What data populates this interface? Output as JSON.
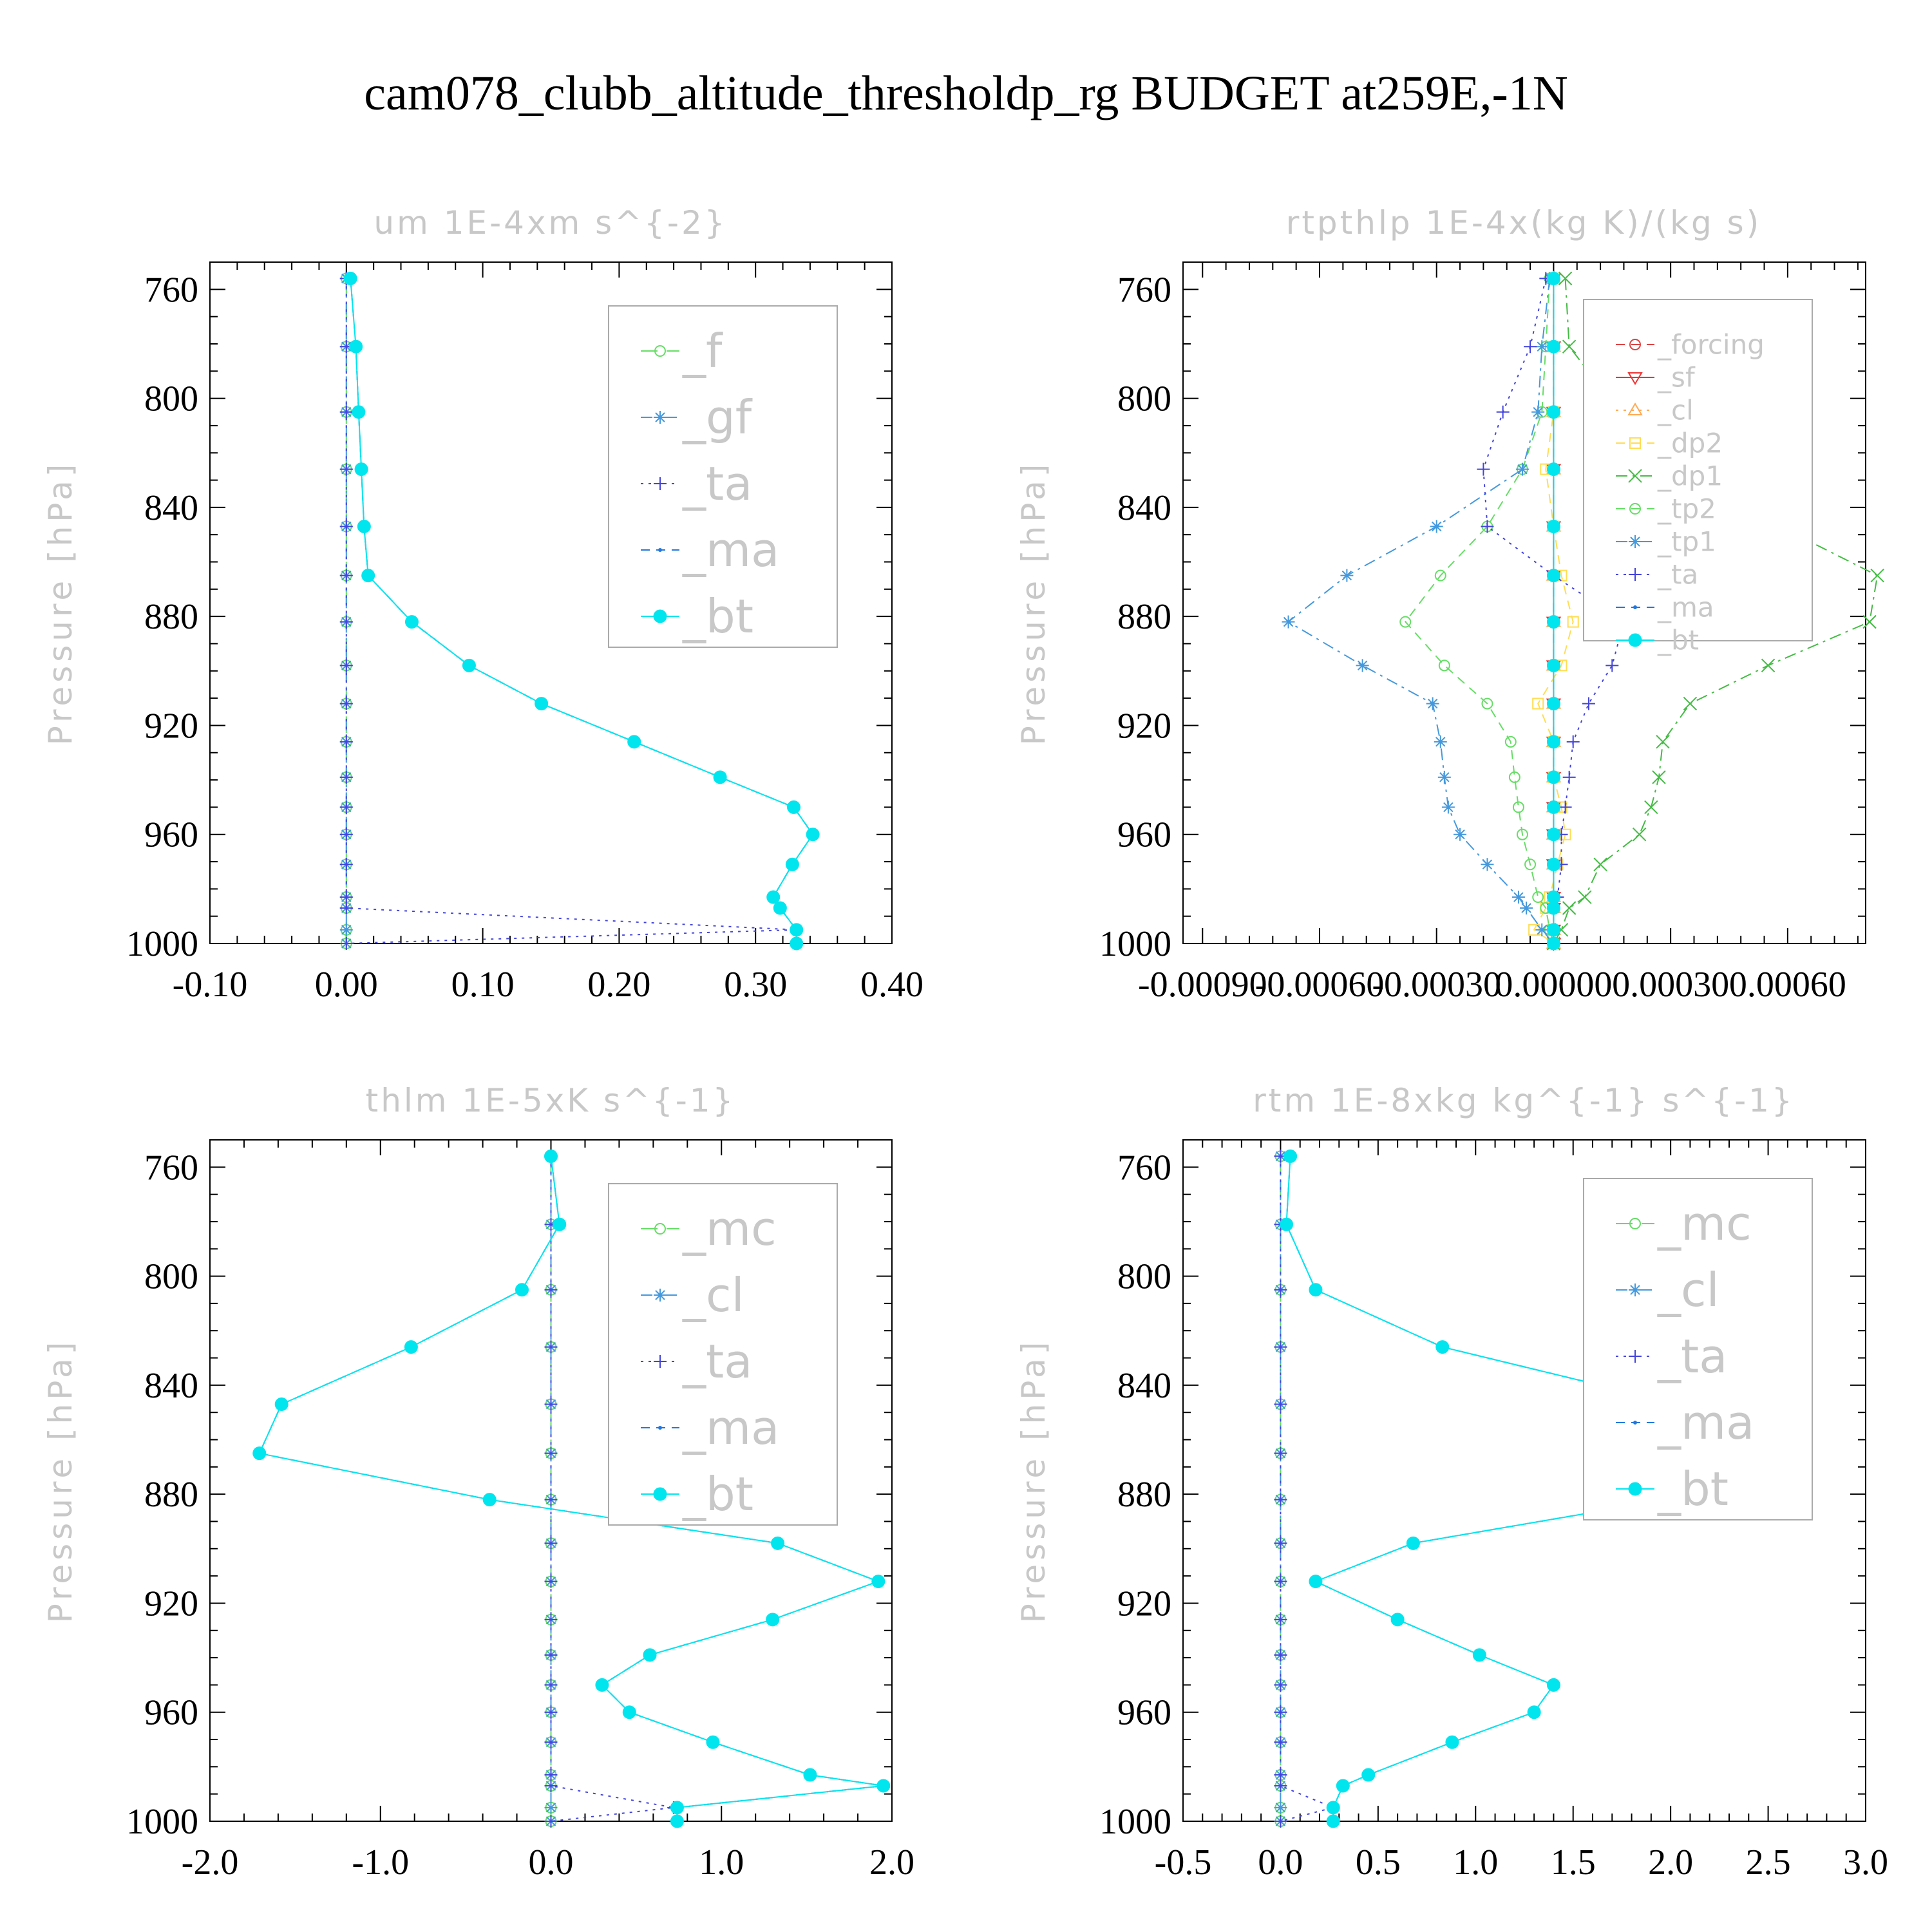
{
  "title": "cam078_clubb_altitude_thresholdp_rg  BUDGET at259E,-1N",
  "chart_data": [
    {
      "type": "line",
      "title": "um   1E-4xm s^{-2}",
      "ylabel": "Pressure [hPa]",
      "xlim": [
        -0.1,
        0.4
      ],
      "xticks": [
        "-0.10",
        "0.00",
        "0.10",
        "0.20",
        "0.30",
        "0.40"
      ],
      "ylim": [
        750,
        1000
      ],
      "yticks": [
        "760",
        "800",
        "840",
        "880",
        "920",
        "960",
        "1000"
      ],
      "y": [
        756,
        781,
        805,
        826,
        847,
        865,
        882,
        898,
        912,
        926,
        939,
        950,
        960,
        971,
        983,
        987,
        995,
        1000
      ],
      "series": [
        {
          "name": "_f",
          "color": "#66dd66",
          "marker": "circle-open",
          "dash": "long-dash",
          "values": [
            0,
            0,
            0,
            0,
            0,
            0,
            0,
            0,
            0,
            0,
            0,
            0,
            0,
            0,
            0,
            0,
            0,
            0
          ]
        },
        {
          "name": "_gf",
          "color": "#4499dd",
          "marker": "asterisk",
          "dash": "dash-dot",
          "values": [
            0,
            0,
            0,
            0,
            0,
            0,
            0,
            0,
            0,
            0,
            0,
            0,
            0,
            0,
            0,
            0,
            0,
            0
          ]
        },
        {
          "name": "_ta",
          "color": "#4444dd",
          "marker": "plus",
          "dash": "dot",
          "values": [
            0,
            0,
            0,
            0,
            0,
            0,
            0,
            0,
            0,
            0,
            0,
            0,
            0,
            0,
            0,
            0,
            0.33,
            0
          ]
        },
        {
          "name": "_ma",
          "color": "#2277dd",
          "marker": "dot",
          "dash": "dash",
          "values": [
            0.003,
            0.007,
            0.009,
            0.011,
            0.013,
            0.016,
            0.048,
            0.09,
            0.143,
            0.211,
            0.274,
            0.328,
            0.342,
            0.327,
            0.313,
            0.318,
            0.33,
            0.33
          ]
        },
        {
          "name": "_bt",
          "color": "#00e5ee",
          "marker": "circle-filled",
          "dash": "none",
          "values": [
            0.003,
            0.007,
            0.009,
            0.011,
            0.013,
            0.016,
            0.048,
            0.09,
            0.143,
            0.211,
            0.274,
            0.328,
            0.342,
            0.327,
            0.313,
            0.318,
            0.33,
            0.33
          ]
        }
      ],
      "legend": "top-right"
    },
    {
      "type": "line",
      "title": "rtpthlp   1E-4x(kg K)/(kg s)",
      "ylabel": "Pressure [hPa]",
      "xlim": [
        -0.00095,
        0.0008
      ],
      "xticks": [
        "-0.00090",
        "-0.00060",
        "-0.00030",
        "0.00000",
        "0.00030",
        "0.00060"
      ],
      "ylim": [
        750,
        1000
      ],
      "yticks": [
        "760",
        "800",
        "840",
        "880",
        "920",
        "960",
        "1000"
      ],
      "y": [
        756,
        781,
        805,
        826,
        847,
        865,
        882,
        898,
        912,
        926,
        939,
        950,
        960,
        971,
        983,
        987,
        995,
        1000
      ],
      "series": [
        {
          "name": "_forcing",
          "color": "#dd4444",
          "marker": "circle-open",
          "dash": "dash",
          "values": [
            0,
            0,
            0,
            0,
            0,
            0,
            0,
            0,
            0,
            0,
            0,
            0,
            0,
            0,
            0,
            0,
            0,
            0
          ]
        },
        {
          "name": "_sf",
          "color": "#ee3333",
          "marker": "triangle-down",
          "dash": "none",
          "values": [
            0,
            0,
            0,
            0,
            0,
            0,
            0,
            0,
            0,
            0,
            0,
            0,
            0,
            0,
            0,
            0,
            0,
            0
          ]
        },
        {
          "name": "_cl",
          "color": "#ffaa55",
          "marker": "triangle-up",
          "dash": "dot",
          "values": [
            0,
            0,
            0,
            0,
            0,
            0,
            0,
            0,
            0,
            0,
            0,
            0,
            0,
            0,
            0,
            0,
            0,
            0
          ]
        },
        {
          "name": "_dp2",
          "color": "#ffdd55",
          "marker": "square-open",
          "dash": "dash",
          "values": [
            0,
            0,
            0,
            -2e-05,
            0,
            2e-05,
            5e-05,
            2e-05,
            -4e-05,
            0,
            0,
            2e-05,
            3e-05,
            1e-05,
            -1e-05,
            -2e-05,
            -5e-05,
            0
          ]
        },
        {
          "name": "_dp1",
          "color": "#44bb44",
          "marker": "x",
          "dash": "dash-dot",
          "values": [
            3e-05,
            4e-05,
            0.00017,
            0.0003,
            0.00058,
            0.00083,
            0.00081,
            0.00055,
            0.00035,
            0.00028,
            0.00027,
            0.00025,
            0.00022,
            0.00012,
            8e-05,
            4e-05,
            2e-05,
            0
          ]
        },
        {
          "name": "_tp2",
          "color": "#66dd66",
          "marker": "circle-open",
          "dash": "dash",
          "values": [
            -1e-05,
            -2e-05,
            -3e-05,
            -8e-05,
            -0.00017,
            -0.00029,
            -0.00038,
            -0.00028,
            -0.00017,
            -0.00011,
            -0.0001,
            -9e-05,
            -8e-05,
            -6e-05,
            -4e-05,
            -2e-05,
            -1e-05,
            0
          ]
        },
        {
          "name": "_tp1",
          "color": "#4499dd",
          "marker": "asterisk",
          "dash": "dash-dot",
          "values": [
            -1e-05,
            -3e-05,
            -4e-05,
            -8e-05,
            -0.0003,
            -0.00053,
            -0.00068,
            -0.00049,
            -0.00031,
            -0.00029,
            -0.00028,
            -0.00027,
            -0.00024,
            -0.00017,
            -9e-05,
            -7e-05,
            -3e-05,
            0
          ]
        },
        {
          "name": "_ta",
          "color": "#4444dd",
          "marker": "plus",
          "dash": "dot",
          "values": [
            -2e-05,
            -6e-05,
            -0.00013,
            -0.00018,
            -0.00017,
            0,
            0.00018,
            0.00015,
            9e-05,
            5e-05,
            4e-05,
            3e-05,
            2e-05,
            2e-05,
            1e-05,
            0,
            0,
            0
          ]
        },
        {
          "name": "_ma",
          "color": "#2277dd",
          "marker": "dot",
          "dash": "dash",
          "values": [
            0,
            0,
            0,
            0,
            0,
            0,
            0,
            0,
            0,
            0,
            0,
            0,
            0,
            0,
            0,
            0,
            0,
            0
          ]
        },
        {
          "name": "_bt",
          "color": "#00e5ee",
          "marker": "circle-filled",
          "dash": "none",
          "values": [
            0,
            0,
            0,
            0,
            0,
            0,
            0,
            0,
            0,
            0,
            0,
            0,
            0,
            0,
            0,
            0,
            0,
            0
          ]
        }
      ],
      "legend": "top-right"
    },
    {
      "type": "line",
      "title": "thlm   1E-5xK s^{-1}",
      "ylabel": "Pressure [hPa]",
      "xlim": [
        -2.0,
        2.0
      ],
      "xticks": [
        "-2.0",
        "-1.0",
        "0.0",
        "1.0",
        "2.0"
      ],
      "ylim": [
        750,
        1000
      ],
      "yticks": [
        "760",
        "800",
        "840",
        "880",
        "920",
        "960",
        "1000"
      ],
      "y": [
        756,
        781,
        805,
        826,
        847,
        865,
        882,
        898,
        912,
        926,
        939,
        950,
        960,
        971,
        983,
        987,
        995,
        1000
      ],
      "series": [
        {
          "name": "_mc",
          "color": "#66dd66",
          "marker": "circle-open",
          "dash": "long-dash",
          "values": [
            0,
            0,
            0,
            0,
            0,
            0,
            0,
            0,
            0,
            0,
            0,
            0,
            0,
            0,
            0,
            0,
            0,
            0
          ]
        },
        {
          "name": "_cl",
          "color": "#4499dd",
          "marker": "asterisk",
          "dash": "dash-dot",
          "values": [
            0,
            0,
            0,
            0,
            0,
            0,
            0,
            0,
            0,
            0,
            0,
            0,
            0,
            0,
            0,
            0,
            0,
            0
          ]
        },
        {
          "name": "_ta",
          "color": "#4444dd",
          "marker": "plus",
          "dash": "dot",
          "values": [
            0,
            0,
            0,
            0,
            0,
            0,
            0,
            0,
            0,
            0,
            0,
            0,
            0,
            0,
            0,
            0,
            0.72,
            0
          ]
        },
        {
          "name": "_ma",
          "color": "#2277dd",
          "marker": "dot",
          "dash": "dash",
          "values": [
            0,
            0.05,
            -0.17,
            -0.82,
            -1.58,
            -1.71,
            -0.36,
            1.33,
            1.92,
            1.3,
            0.58,
            0.3,
            0.46,
            0.95,
            1.52,
            1.95,
            0.74,
            0.74
          ]
        },
        {
          "name": "_bt",
          "color": "#00e5ee",
          "marker": "circle-filled",
          "dash": "none",
          "values": [
            0,
            0.05,
            -0.17,
            -0.82,
            -1.58,
            -1.71,
            -0.36,
            1.33,
            1.92,
            1.3,
            0.58,
            0.3,
            0.46,
            0.95,
            1.52,
            1.95,
            0.74,
            0.74
          ]
        }
      ],
      "legend": "top-right"
    },
    {
      "type": "line",
      "title": "rtm   1E-8xkg kg^{-1} s^{-1}",
      "ylabel": "Pressure [hPa]",
      "xlim": [
        -0.5,
        3.0
      ],
      "xticks": [
        "-0.5",
        "0.0",
        "0.5",
        "1.0",
        "1.5",
        "2.0",
        "2.5",
        "3.0"
      ],
      "ylim": [
        750,
        1000
      ],
      "yticks": [
        "760",
        "800",
        "840",
        "880",
        "920",
        "960",
        "1000"
      ],
      "y": [
        756,
        781,
        805,
        826,
        847,
        865,
        882,
        898,
        912,
        926,
        939,
        950,
        960,
        971,
        983,
        987,
        995,
        1000
      ],
      "series": [
        {
          "name": "_mc",
          "color": "#66dd66",
          "marker": "circle-open",
          "dash": "long-dash",
          "values": [
            0,
            0,
            0,
            0,
            0,
            0,
            0,
            0,
            0,
            0,
            0,
            0,
            0,
            0,
            0,
            0,
            0,
            0
          ]
        },
        {
          "name": "_cl",
          "color": "#4499dd",
          "marker": "asterisk",
          "dash": "dash-dot",
          "values": [
            0,
            0,
            0,
            0,
            0,
            0,
            0,
            0,
            0,
            0,
            0,
            0,
            0,
            0,
            0,
            0,
            0,
            0
          ]
        },
        {
          "name": "_ta",
          "color": "#4444dd",
          "marker": "plus",
          "dash": "dot",
          "values": [
            0,
            0,
            0,
            0,
            0,
            0,
            0,
            0,
            0,
            0,
            0,
            0,
            0,
            0,
            0,
            0,
            0.27,
            0
          ]
        },
        {
          "name": "_ma",
          "color": "#2277dd",
          "marker": "dot",
          "dash": "dash",
          "values": [
            0.05,
            0.03,
            0.18,
            0.83,
            2.04,
            2.69,
            1.98,
            0.68,
            0.18,
            0.6,
            1.02,
            1.4,
            1.3,
            0.88,
            0.45,
            0.32,
            0.27,
            0.27
          ]
        },
        {
          "name": "_bt",
          "color": "#00e5ee",
          "marker": "circle-filled",
          "dash": "none",
          "values": [
            0.05,
            0.03,
            0.18,
            0.83,
            2.04,
            2.69,
            1.98,
            0.68,
            0.18,
            0.6,
            1.02,
            1.4,
            1.3,
            0.88,
            0.45,
            0.32,
            0.27,
            0.27
          ]
        }
      ],
      "legend": "top-right"
    }
  ]
}
